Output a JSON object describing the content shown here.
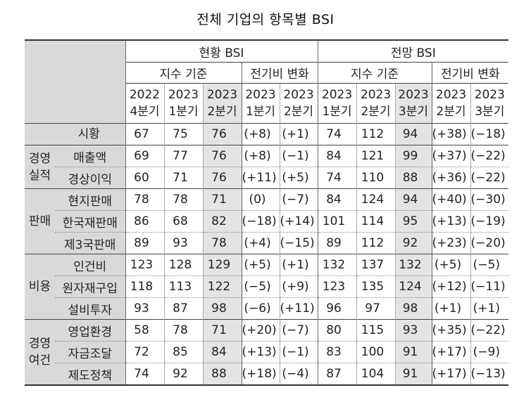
{
  "title": "전체 기업의 항목별 BSI",
  "header": {
    "current": "현황 BSI",
    "forecast": "전망 BSI",
    "index_basis": "지수 기준",
    "qoq_change": "전기비 변화",
    "cur_cols": [
      [
        "2022",
        "4분기"
      ],
      [
        "2023",
        "1분기"
      ],
      [
        "2023",
        "2분기"
      ],
      [
        "2023",
        "1분기"
      ],
      [
        "2023",
        "2분기"
      ]
    ],
    "fc_cols": [
      [
        "2023",
        "1분기"
      ],
      [
        "2023",
        "2분기"
      ],
      [
        "2023",
        "3분기"
      ],
      [
        "2023",
        "2분기"
      ],
      [
        "2023",
        "3분기"
      ]
    ]
  },
  "groups": [
    {
      "label": ""
    },
    {
      "label": "경영\n실적"
    },
    {
      "label": "판매"
    },
    {
      "label": "비용"
    },
    {
      "label": "경영\n여건"
    }
  ],
  "rows": [
    {
      "name": "시황",
      "cells": [
        "67",
        "75",
        "76",
        "(+8)",
        "(+1)",
        "74",
        "112",
        "94",
        "(+38)",
        "(−18)"
      ]
    },
    {
      "name": "매출액",
      "cells": [
        "69",
        "77",
        "76",
        "(+8)",
        "(−1)",
        "84",
        "121",
        "99",
        "(+37)",
        "(−22)"
      ]
    },
    {
      "name": "경상이익",
      "cells": [
        "60",
        "71",
        "76",
        "(+11)",
        "(+5)",
        "74",
        "110",
        "88",
        "(+36)",
        "(−22)"
      ]
    },
    {
      "name": "현지판매",
      "cells": [
        "78",
        "78",
        "71",
        "(0)",
        "(−7)",
        "84",
        "124",
        "94",
        "(+40)",
        "(−30)"
      ]
    },
    {
      "name": "한국재판매",
      "cells": [
        "86",
        "68",
        "82",
        "(−18)",
        "(+14)",
        "101",
        "114",
        "95",
        "(+13)",
        "(−19)"
      ]
    },
    {
      "name": "제3국판매",
      "cells": [
        "89",
        "93",
        "78",
        "(+4)",
        "(−15)",
        "89",
        "112",
        "92",
        "(+23)",
        "(−20)"
      ]
    },
    {
      "name": "인건비",
      "cells": [
        "123",
        "128",
        "129",
        "(+5)",
        "(+1)",
        "132",
        "137",
        "132",
        "(+5)",
        "(−5)"
      ]
    },
    {
      "name": "원자재구입",
      "cells": [
        "118",
        "113",
        "122",
        "(−5)",
        "(+9)",
        "123",
        "135",
        "124",
        "(+12)",
        "(−11)"
      ]
    },
    {
      "name": "설비투자",
      "cells": [
        "93",
        "87",
        "98",
        "(−6)",
        "(+11)",
        "96",
        "97",
        "98",
        "(+1)",
        "(+1)"
      ]
    },
    {
      "name": "영업환경",
      "cells": [
        "58",
        "78",
        "71",
        "(+20)",
        "(−7)",
        "80",
        "115",
        "93",
        "(+35)",
        "(−22)"
      ]
    },
    {
      "name": "자금조달",
      "cells": [
        "72",
        "85",
        "84",
        "(+13)",
        "(−1)",
        "83",
        "100",
        "91",
        "(+17)",
        "(−9)"
      ]
    },
    {
      "name": "제도정책",
      "cells": [
        "74",
        "92",
        "88",
        "(+18)",
        "(−4)",
        "87",
        "104",
        "91",
        "(+17)",
        "(−13)"
      ]
    }
  ]
}
